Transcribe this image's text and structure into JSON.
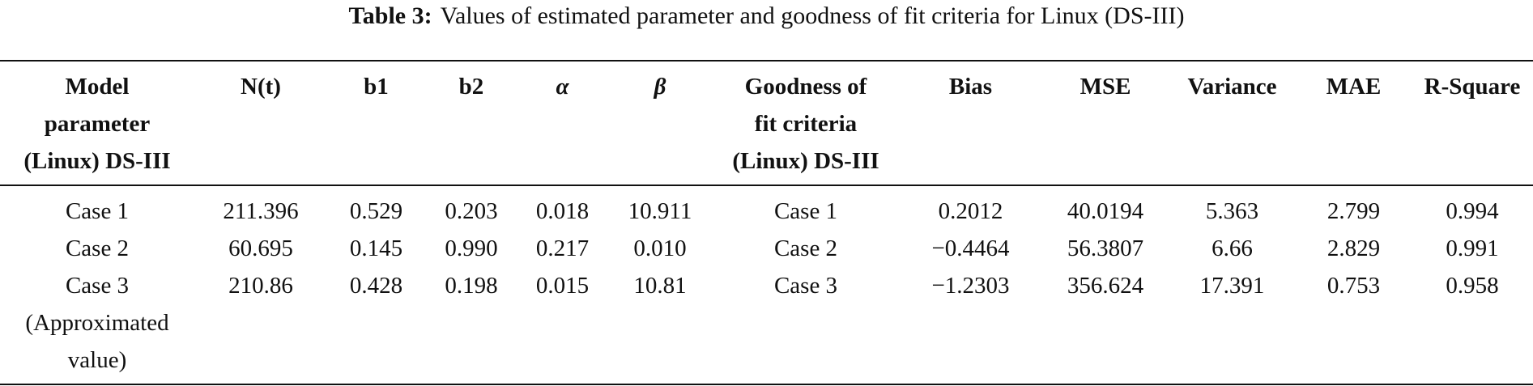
{
  "caption": {
    "label": "Table 3:",
    "text": "Values of estimated parameter and goodness of fit criteria for Linux (DS-III)"
  },
  "table": {
    "header": [
      [
        "Model",
        "parameter",
        "(Linux) DS-III"
      ],
      [
        "N(t)"
      ],
      [
        "b1"
      ],
      [
        "b2"
      ],
      [
        "α"
      ],
      [
        "β"
      ],
      [
        "Goodness of",
        "fit criteria",
        "(Linux) DS-III"
      ],
      [
        "Bias"
      ],
      [
        "MSE"
      ],
      [
        "Variance"
      ],
      [
        "MAE"
      ],
      [
        "R-Square"
      ]
    ],
    "rows": [
      [
        [
          "Case 1"
        ],
        [
          "211.396"
        ],
        [
          "0.529"
        ],
        [
          "0.203"
        ],
        [
          "0.018"
        ],
        [
          "10.911"
        ],
        [
          "Case 1"
        ],
        [
          "0.2012"
        ],
        [
          "40.0194"
        ],
        [
          "5.363"
        ],
        [
          "2.799"
        ],
        [
          "0.994"
        ]
      ],
      [
        [
          "Case 2"
        ],
        [
          "60.695"
        ],
        [
          "0.145"
        ],
        [
          "0.990"
        ],
        [
          "0.217"
        ],
        [
          "0.010"
        ],
        [
          "Case 2"
        ],
        [
          "−0.4464"
        ],
        [
          "56.3807"
        ],
        [
          "6.66"
        ],
        [
          "2.829"
        ],
        [
          "0.991"
        ]
      ],
      [
        [
          "Case 3",
          "(Approximated",
          "value)"
        ],
        [
          "210.86"
        ],
        [
          "0.428"
        ],
        [
          "0.198"
        ],
        [
          "0.015"
        ],
        [
          "10.81"
        ],
        [
          "Case 3"
        ],
        [
          "−1.2303"
        ],
        [
          "356.624"
        ],
        [
          "17.391"
        ],
        [
          "0.753"
        ],
        [
          "0.958"
        ]
      ]
    ]
  }
}
